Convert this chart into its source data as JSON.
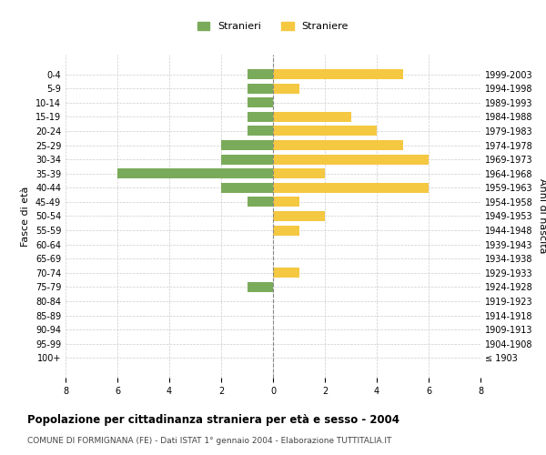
{
  "age_groups": [
    "100+",
    "95-99",
    "90-94",
    "85-89",
    "80-84",
    "75-79",
    "70-74",
    "65-69",
    "60-64",
    "55-59",
    "50-54",
    "45-49",
    "40-44",
    "35-39",
    "30-34",
    "25-29",
    "20-24",
    "15-19",
    "10-14",
    "5-9",
    "0-4"
  ],
  "birth_years": [
    "≤ 1903",
    "1904-1908",
    "1909-1913",
    "1914-1918",
    "1919-1923",
    "1924-1928",
    "1929-1933",
    "1934-1938",
    "1939-1943",
    "1944-1948",
    "1949-1953",
    "1954-1958",
    "1959-1963",
    "1964-1968",
    "1969-1973",
    "1974-1978",
    "1979-1983",
    "1984-1988",
    "1989-1993",
    "1994-1998",
    "1999-2003"
  ],
  "males": [
    0,
    0,
    0,
    0,
    0,
    1,
    0,
    0,
    0,
    0,
    0,
    1,
    2,
    6,
    2,
    2,
    1,
    1,
    1,
    1,
    1
  ],
  "females": [
    0,
    0,
    0,
    0,
    0,
    0,
    1,
    0,
    0,
    1,
    2,
    1,
    6,
    2,
    6,
    5,
    4,
    3,
    0,
    1,
    5
  ],
  "male_color": "#7aab5a",
  "female_color": "#f5c842",
  "title": "Popolazione per cittadinanza straniera per età e sesso - 2004",
  "subtitle": "COMUNE DI FORMIGNANA (FE) - Dati ISTAT 1° gennaio 2004 - Elaborazione TUTTITALIA.IT",
  "ylabel_left": "Fasce di età",
  "ylabel_right": "Anni di nascita",
  "legend_male": "Stranieri",
  "legend_female": "Straniere",
  "xlim": 8,
  "background_color": "#ffffff",
  "grid_color": "#cccccc"
}
